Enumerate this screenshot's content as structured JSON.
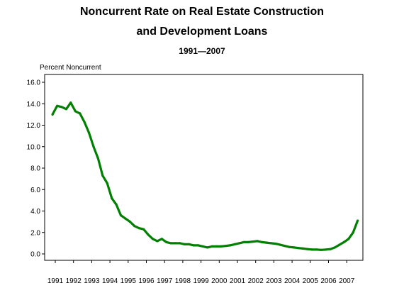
{
  "chart_data": {
    "type": "line",
    "title_lines": [
      "Noncurrent Rate on Real Estate Construction",
      "and Development Loans"
    ],
    "subtitle": "1991—2007",
    "ylabel": "Percent Noncurrent",
    "xlabel": "",
    "ylim": [
      0,
      16
    ],
    "yticks": [
      "0.0",
      "2.0",
      "4.0",
      "6.0",
      "8.0",
      "10.0",
      "12.0",
      "14.0",
      "16.0"
    ],
    "xticks": [
      "1991",
      "1992",
      "1993",
      "1994",
      "1995",
      "1996",
      "1997",
      "1998",
      "1999",
      "2000",
      "2001",
      "2002",
      "2003",
      "2004",
      "2005",
      "2006",
      "2007"
    ],
    "grid": false,
    "legend": "none",
    "series": [
      {
        "color": "#008000",
        "x": [
          "1991 Q1",
          "1991 Q2",
          "1991 Q3",
          "1991 Q4",
          "1992 Q1",
          "1992 Q2",
          "1992 Q3",
          "1992 Q4",
          "1993 Q1",
          "1993 Q2",
          "1993 Q3",
          "1993 Q4",
          "1994 Q1",
          "1994 Q2",
          "1994 Q3",
          "1994 Q4",
          "1995 Q1",
          "1995 Q2",
          "1995 Q3",
          "1995 Q4",
          "1996 Q1",
          "1996 Q2",
          "1996 Q3",
          "1996 Q4",
          "1997 Q1",
          "1997 Q2",
          "1997 Q3",
          "1997 Q4",
          "1998 Q1",
          "1998 Q2",
          "1998 Q3",
          "1998 Q4",
          "1999 Q1",
          "1999 Q2",
          "1999 Q3",
          "1999 Q4",
          "2000 Q1",
          "2000 Q2",
          "2000 Q3",
          "2000 Q4",
          "2001 Q1",
          "2001 Q2",
          "2001 Q3",
          "2001 Q4",
          "2002 Q1",
          "2002 Q2",
          "2002 Q3",
          "2002 Q4",
          "2003 Q1",
          "2003 Q2",
          "2003 Q3",
          "2003 Q4",
          "2004 Q1",
          "2004 Q2",
          "2004 Q3",
          "2004 Q4",
          "2005 Q1",
          "2005 Q2",
          "2005 Q3",
          "2005 Q4",
          "2006 Q1",
          "2006 Q2",
          "2006 Q3",
          "2006 Q4",
          "2007 Q1",
          "2007 Q2",
          "2007 Q3",
          "2007 Q4"
        ],
        "values": [
          13.0,
          13.8,
          13.7,
          13.5,
          14.1,
          13.3,
          13.1,
          12.3,
          11.3,
          10.0,
          8.9,
          7.3,
          6.6,
          5.2,
          4.6,
          3.6,
          3.3,
          3.0,
          2.6,
          2.4,
          2.3,
          1.8,
          1.4,
          1.2,
          1.4,
          1.1,
          1.0,
          1.0,
          1.0,
          0.9,
          0.9,
          0.8,
          0.8,
          0.7,
          0.6,
          0.7,
          0.7,
          0.7,
          0.75,
          0.8,
          0.9,
          1.0,
          1.1,
          1.1,
          1.15,
          1.2,
          1.1,
          1.05,
          1.0,
          0.95,
          0.85,
          0.75,
          0.65,
          0.6,
          0.55,
          0.5,
          0.45,
          0.4,
          0.4,
          0.38,
          0.4,
          0.45,
          0.6,
          0.85,
          1.1,
          1.4,
          2.0,
          3.1
        ]
      }
    ]
  }
}
